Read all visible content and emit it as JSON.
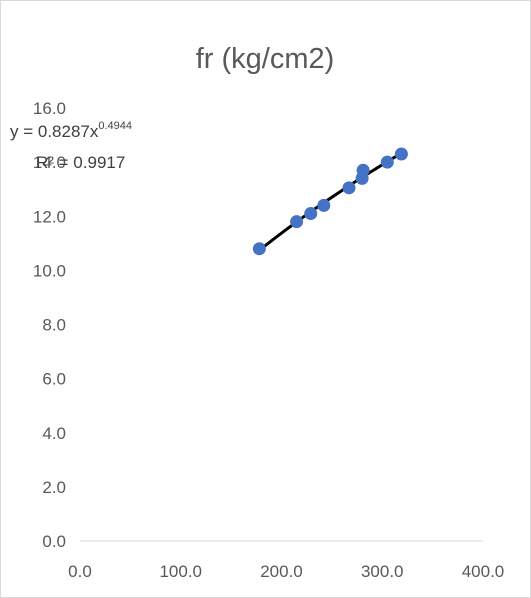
{
  "chart_data": {
    "type": "scatter",
    "title": "fr (kg/cm2)",
    "xlabel": "",
    "ylabel": "",
    "xlim": [
      0,
      400
    ],
    "ylim": [
      0,
      16
    ],
    "x_ticks": [
      "0.0",
      "100.0",
      "200.0",
      "300.0",
      "400.0"
    ],
    "y_ticks": [
      "0.0",
      "2.0",
      "4.0",
      "6.0",
      "8.0",
      "10.0",
      "12.0",
      "14.0",
      "16.0"
    ],
    "grid": false,
    "legend": "none",
    "series": [
      {
        "marker_color": "#4472C4",
        "points": [
          {
            "x": 178,
            "y": 10.8
          },
          {
            "x": 215,
            "y": 11.8
          },
          {
            "x": 229,
            "y": 12.1
          },
          {
            "x": 242,
            "y": 12.4
          },
          {
            "x": 267,
            "y": 13.05
          },
          {
            "x": 280,
            "y": 13.4
          },
          {
            "x": 281,
            "y": 13.7
          },
          {
            "x": 305,
            "y": 14.0
          },
          {
            "x": 319,
            "y": 14.3
          }
        ]
      }
    ],
    "trendline": {
      "type": "power",
      "coefficient": 0.8287,
      "exponent": 0.4944,
      "x_range": [
        178,
        319
      ],
      "color": "#000000",
      "equation_base": "y = 0.8287x",
      "equation_exponent": "0.4944",
      "r_squared_text": "R² = 0.9917"
    }
  }
}
